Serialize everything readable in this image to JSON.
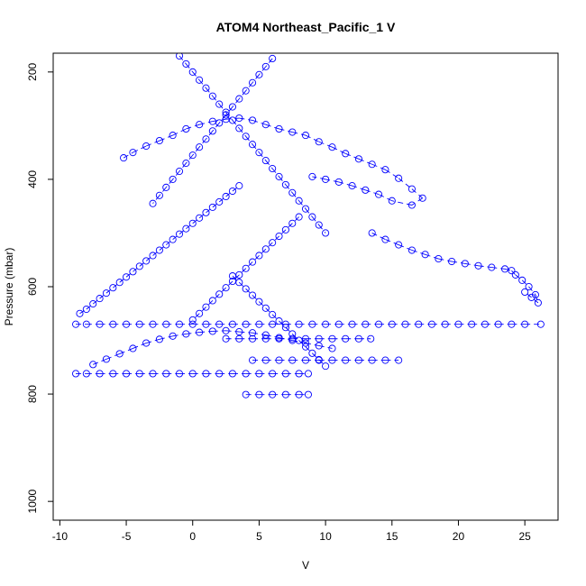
{
  "chart_data": {
    "type": "scatter",
    "title": "ATOM4 Northeast_Pacific_1 V",
    "xlabel": "V",
    "ylabel": "Pressure (mbar)",
    "xlim": [
      -10.5,
      27.5
    ],
    "ylim": [
      1035,
      165
    ],
    "y_inverted": true,
    "x_ticks": [
      -10,
      -5,
      0,
      5,
      10,
      15,
      20,
      25
    ],
    "y_ticks": [
      200,
      400,
      600,
      800,
      1000
    ],
    "marker": "open-circle",
    "color": "#0000ff",
    "grid": false,
    "profiles": [
      {
        "v": [
          -8.8,
          -8,
          -7,
          -6,
          -5,
          -4,
          -3,
          -2,
          -1,
          0,
          1,
          2,
          3,
          4,
          5,
          6,
          7,
          8,
          9,
          10,
          11,
          12,
          13,
          14,
          15,
          16,
          17,
          18,
          19,
          20,
          21,
          22,
          23,
          24,
          25,
          26.2
        ],
        "p": [
          670,
          670,
          670,
          670,
          670,
          670,
          670,
          670,
          670,
          670,
          670,
          670,
          670,
          670,
          670,
          670,
          670,
          670,
          670,
          670,
          670,
          670,
          670,
          670,
          670,
          670,
          670,
          670,
          670,
          670,
          670,
          670,
          670,
          670,
          670,
          670
        ]
      },
      {
        "v": [
          -8.8,
          -8,
          -7,
          -6,
          -5,
          -4,
          -3,
          -2,
          -1,
          0,
          1,
          2,
          3,
          4,
          5,
          6,
          7,
          8,
          8.7
        ],
        "p": [
          762,
          762,
          762,
          762,
          762,
          762,
          762,
          762,
          762,
          762,
          762,
          762,
          762,
          762,
          762,
          762,
          762,
          762,
          762
        ]
      },
      {
        "v": [
          2.5,
          3.5,
          4.5,
          5.5,
          6.5,
          7.5,
          8.5,
          9.5,
          10.5,
          11.5,
          12.5,
          13.4
        ],
        "p": [
          697,
          697,
          697,
          697,
          697,
          697,
          697,
          697,
          697,
          697,
          697,
          697
        ]
      },
      {
        "v": [
          4.5,
          5.5,
          6.5,
          7.5,
          8.5,
          9.5,
          10.5,
          11.5,
          12.5,
          13.5,
          14.5,
          15.5
        ],
        "p": [
          737,
          737,
          737,
          737,
          737,
          737,
          737,
          737,
          737,
          737,
          737,
          737
        ]
      },
      {
        "v": [
          4,
          5,
          6,
          7,
          8,
          8.7
        ],
        "p": [
          801,
          801,
          801,
          801,
          801,
          801
        ]
      },
      {
        "v": [
          -5.2,
          -4.5,
          -3.5,
          -2.5,
          -1.5,
          -0.5,
          0.5,
          1.5,
          2.5,
          3.5,
          4.5,
          5.5,
          6.5,
          7.5,
          8.5,
          9.5,
          10.5,
          11.5,
          12.5,
          13.5,
          14.5,
          15.5,
          16.5,
          17.3,
          16.5,
          15,
          14,
          13,
          12,
          11,
          10,
          9
        ],
        "p": [
          360,
          350,
          338,
          328,
          318,
          306,
          298,
          292,
          288,
          286,
          290,
          298,
          306,
          312,
          318,
          330,
          340,
          352,
          362,
          372,
          382,
          398,
          418,
          435,
          448,
          440,
          428,
          420,
          412,
          405,
          400,
          395
        ]
      },
      {
        "v": [
          13.5,
          14.5,
          15.5,
          16.5,
          17.5,
          18.5,
          19.5,
          20.5,
          21.5,
          22.5,
          23.5,
          24,
          24.3,
          24.8,
          25.3,
          25.8,
          26,
          25.5,
          25
        ],
        "p": [
          500,
          512,
          522,
          532,
          540,
          548,
          553,
          557,
          561,
          564,
          567,
          570,
          578,
          588,
          600,
          615,
          630,
          620,
          610
        ]
      },
      {
        "v": [
          -8.5,
          -8,
          -7.5,
          -7,
          -6.5,
          -6,
          -5.5,
          -5,
          -4.5,
          -4,
          -3.5,
          -3,
          -2.5,
          -2,
          -1.5,
          -1,
          -0.5,
          0,
          0.5,
          1,
          1.5,
          2,
          2.5,
          3,
          3.5
        ],
        "p": [
          650,
          642,
          632,
          622,
          612,
          602,
          592,
          582,
          572,
          562,
          552,
          542,
          532,
          522,
          512,
          502,
          492,
          482,
          472,
          462,
          452,
          442,
          432,
          422,
          412
        ]
      },
      {
        "v": [
          -7.5,
          -6.5,
          -5.5,
          -4.5,
          -3.5,
          -2.5,
          -1.5,
          -0.5,
          0.5,
          1.5,
          2.5,
          3.5,
          4.5,
          5.5,
          6.5,
          7.5,
          8.5,
          9.5,
          10.5
        ],
        "p": [
          745,
          735,
          725,
          715,
          705,
          698,
          692,
          688,
          685,
          683,
          682,
          684,
          686,
          690,
          695,
          700,
          705,
          710,
          715
        ]
      },
      {
        "v": [
          -1,
          -0.5,
          0,
          0.5,
          1,
          1.5,
          2,
          2.5,
          3,
          3.5,
          4,
          4.5,
          5,
          5.5,
          6,
          6.5,
          7,
          7.5,
          8,
          8.5,
          9,
          9.5,
          10
        ],
        "p": [
          170,
          185,
          200,
          215,
          230,
          245,
          260,
          275,
          290,
          305,
          320,
          335,
          350,
          365,
          380,
          395,
          410,
          425,
          440,
          455,
          470,
          485,
          500
        ]
      },
      {
        "v": [
          6,
          5.5,
          5,
          4.5,
          4,
          3.5,
          3,
          2.5,
          2,
          1.5,
          1,
          0.5,
          0,
          -0.5,
          -1,
          -1.5,
          -2,
          -2.5,
          -3
        ],
        "p": [
          175,
          190,
          205,
          220,
          235,
          250,
          265,
          280,
          295,
          310,
          325,
          340,
          355,
          370,
          385,
          400,
          415,
          430,
          445
        ]
      },
      {
        "v": [
          3,
          3.5,
          4,
          4.5,
          5,
          5.5,
          6,
          6.5,
          7,
          7.5,
          8,
          8.5,
          9,
          9.5,
          10
        ],
        "p": [
          580,
          592,
          604,
          616,
          628,
          640,
          652,
          664,
          676,
          688,
          700,
          712,
          724,
          736,
          748
        ]
      },
      {
        "v": [
          8,
          7.5,
          7,
          6.5,
          6,
          5.5,
          5,
          4.5,
          4,
          3.5,
          3,
          2.5,
          2,
          1.5,
          1,
          0.5,
          0
        ],
        "p": [
          470,
          482,
          494,
          506,
          518,
          530,
          542,
          554,
          566,
          578,
          590,
          602,
          614,
          626,
          638,
          650,
          662
        ]
      }
    ]
  }
}
